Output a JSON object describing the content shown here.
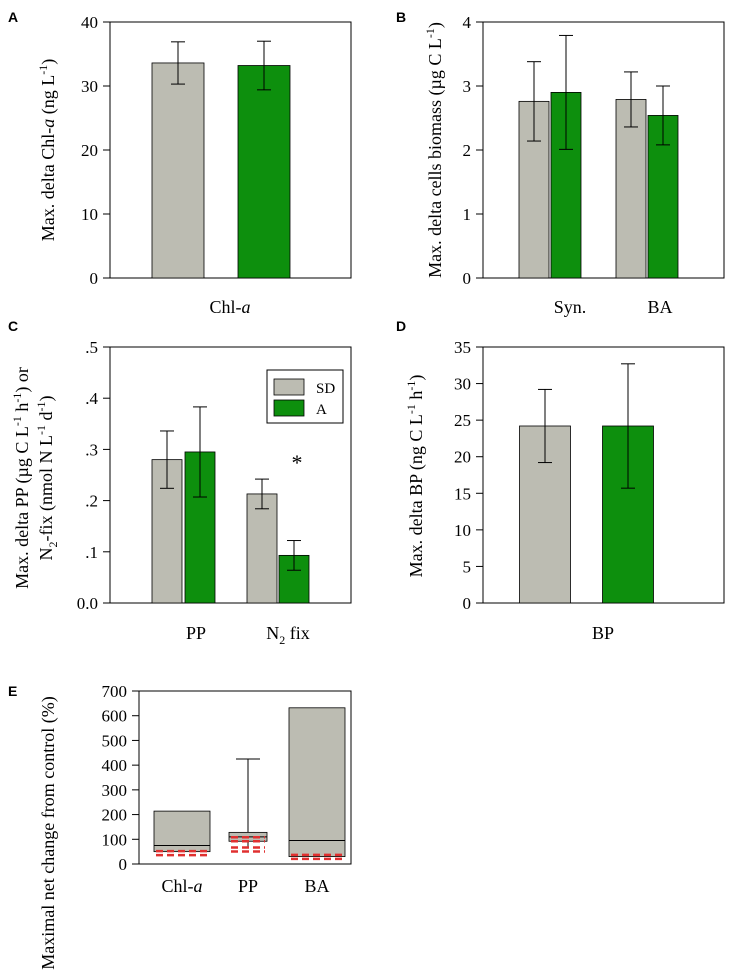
{
  "colors": {
    "SD": "#bcbcb2",
    "A": "#0d8f0d",
    "median_line": "#e03030",
    "axis": "#000000"
  },
  "legend": {
    "SD": "SD",
    "A": "A"
  },
  "chart_data": [
    {
      "panel": "A",
      "type": "bar",
      "ylim": [
        0,
        40
      ],
      "yticks": [
        "0",
        "10",
        "20",
        "30",
        "40"
      ],
      "ytick_values": [
        0,
        10,
        20,
        30,
        40
      ],
      "ylabel": {
        "p1": "Max. delta Chl-",
        "p2": "a",
        "p3": " (ng  L",
        "sup": "-1",
        "p4": ")"
      },
      "categories": [
        "Chl-a"
      ],
      "category_label": {
        "p1": "Chl-",
        "p2": "a"
      },
      "series": [
        {
          "name": "SD",
          "values": [
            33.6
          ],
          "errors": [
            3.3
          ]
        },
        {
          "name": "A",
          "values": [
            33.2
          ],
          "errors": [
            3.8
          ]
        }
      ]
    },
    {
      "panel": "B",
      "type": "bar",
      "ylim": [
        0,
        4
      ],
      "yticks": [
        "0",
        "1",
        "2",
        "3",
        "4"
      ],
      "ytick_values": [
        0,
        1,
        2,
        3,
        4
      ],
      "ylabel": {
        "p1": "Max. delta cells biomass (µg C L",
        "sup": "-1",
        "p2": ")"
      },
      "categories": [
        "Syn.",
        "BA"
      ],
      "series": [
        {
          "name": "SD",
          "values": [
            2.76,
            2.79
          ],
          "errors": [
            0.62,
            0.43
          ]
        },
        {
          "name": "A",
          "values": [
            2.9,
            2.54
          ],
          "errors": [
            0.89,
            0.46
          ]
        }
      ]
    },
    {
      "panel": "C",
      "type": "bar",
      "ylim": [
        0,
        0.5
      ],
      "yticks": [
        "0.0",
        ".1",
        ".2",
        ".3",
        ".4",
        ".5"
      ],
      "ytick_values": [
        0,
        0.1,
        0.2,
        0.3,
        0.4,
        0.5
      ],
      "ylabel_line1": {
        "p1": "Max. delta PP (µg C L",
        "sup1": "-1",
        "p2": " h",
        "sup2": "-1",
        "p3": ") or"
      },
      "ylabel_line2": {
        "p1": "N",
        "sub": "2",
        "p2": "-fix (nmol N L",
        "sup1": "-1",
        "p3": " d",
        "sup2": "-1",
        "p4": ")"
      },
      "categories": [
        "PP",
        "N2 fix"
      ],
      "category_label_n2": {
        "p1": "N",
        "sub": "2",
        "p2": " fix"
      },
      "annotation": "*",
      "series": [
        {
          "name": "SD",
          "values": [
            0.28,
            0.213
          ],
          "errors": [
            0.056,
            0.029
          ]
        },
        {
          "name": "A",
          "values": [
            0.295,
            0.093
          ],
          "errors": [
            0.088,
            0.029
          ]
        }
      ]
    },
    {
      "panel": "D",
      "type": "bar",
      "ylim": [
        0,
        35
      ],
      "yticks": [
        "0",
        "5",
        "10",
        "15",
        "20",
        "25",
        "30",
        "35"
      ],
      "ytick_values": [
        0,
        5,
        10,
        15,
        20,
        25,
        30,
        35
      ],
      "ylabel": {
        "p1": "Max. delta BP (ng C L",
        "sup1": "-1",
        "p2": " h",
        "sup2": "-1",
        "p3": ")"
      },
      "categories": [
        "BP"
      ],
      "series": [
        {
          "name": "SD",
          "values": [
            24.2
          ],
          "errors": [
            5.0
          ]
        },
        {
          "name": "A",
          "values": [
            24.2
          ],
          "errors": [
            8.5
          ]
        }
      ]
    },
    {
      "panel": "E",
      "type": "box",
      "ylim": [
        0,
        700
      ],
      "yticks": [
        "0",
        "100",
        "200",
        "300",
        "400",
        "500",
        "600",
        "700"
      ],
      "ytick_values": [
        0,
        100,
        200,
        300,
        400,
        500,
        600,
        700
      ],
      "ylabel": "Maximal net change from control (%)",
      "categories": [
        "Chl-a",
        "PP",
        "BA"
      ],
      "category_label": {
        "p1": "Chl-",
        "p2": "a"
      },
      "boxes": [
        {
          "name": "Chl-a",
          "q1": 50,
          "median": 75,
          "q3": 214,
          "whisker_low": 50,
          "whisker_high": 214,
          "mean": 52
        },
        {
          "name": "PP",
          "q1": 92,
          "median": 110,
          "q3": 128,
          "whisker_low": 65,
          "whisker_high": 425,
          "mean": 108,
          "mean2": 67
        },
        {
          "name": "BA",
          "q1": 30,
          "median": 95,
          "q3": 632,
          "whisker_low": 30,
          "whisker_high": 632,
          "mean": 37
        }
      ]
    }
  ]
}
